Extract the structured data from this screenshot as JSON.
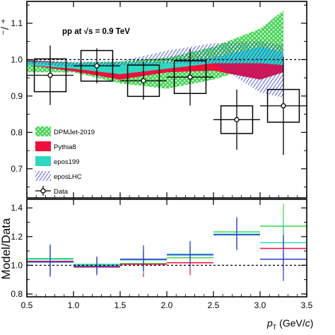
{
  "colors": {
    "dpmjet": "#3bd94a",
    "pythia8": "#f0103c",
    "epos199": "#2fd8c0",
    "eposlhc": "#2a3bd0",
    "data": "#000000",
    "frame": "#000000"
  },
  "labels": {
    "top_ylabel": "⁻/ ⁺",
    "annotation": "pp at √s = 0.9 TeV",
    "bottom_ylabel": "Model/Data",
    "xlabel": "p_T (GeV/c)"
  },
  "legend": [
    {
      "key": "dpmjet",
      "label": "DPMJet-2019",
      "style": "crosshatch"
    },
    {
      "key": "pythia8",
      "label": "Pythia8",
      "style": "solid"
    },
    {
      "key": "epos199",
      "label": "epos199",
      "style": "solid"
    },
    {
      "key": "eposlhc",
      "label": "eposLHC",
      "style": "hatch"
    },
    {
      "key": "data",
      "label": "Data",
      "style": "marker"
    }
  ],
  "chart_data": [
    {
      "type": "line",
      "panel": "ratio",
      "xlim": [
        0.5,
        3.5
      ],
      "ylim": [
        0.62,
        1.16
      ],
      "yticks": [
        0.7,
        0.8,
        0.9,
        1.0,
        1.1
      ],
      "reference_line": 1.0,
      "data_points": [
        {
          "x": 0.75,
          "y": 0.957,
          "xerr": 0.25,
          "stat": 0.082,
          "sys": 0.045
        },
        {
          "x": 1.25,
          "y": 0.983,
          "xerr": 0.25,
          "stat": 0.048,
          "sys": 0.042
        },
        {
          "x": 1.75,
          "y": 0.942,
          "xerr": 0.25,
          "stat": 0.052,
          "sys": 0.043
        },
        {
          "x": 2.25,
          "y": 0.952,
          "xerr": 0.25,
          "stat": 0.078,
          "sys": 0.045
        },
        {
          "x": 2.75,
          "y": 0.835,
          "xerr": 0.25,
          "stat": 0.083,
          "sys": 0.038
        },
        {
          "x": 3.25,
          "y": 0.873,
          "xerr": 0.25,
          "stat": 0.135,
          "sys": 0.045
        }
      ],
      "model_bands": [
        {
          "key": "dpmjet",
          "x": [
            0.5,
            1.0,
            1.5,
            2.0,
            2.5,
            3.0,
            3.25
          ],
          "low": [
            0.965,
            0.965,
            0.935,
            0.92,
            0.945,
            0.985,
            1.0
          ],
          "high": [
            1.0,
            0.992,
            0.995,
            1.005,
            1.035,
            1.085,
            1.135
          ]
        },
        {
          "key": "pythia8",
          "x": [
            0.5,
            1.0,
            1.5,
            2.0,
            2.5,
            3.0,
            3.25
          ],
          "low": [
            0.985,
            0.968,
            0.945,
            0.965,
            0.97,
            0.945,
            0.965
          ],
          "high": [
            0.998,
            0.99,
            0.985,
            0.99,
            1.005,
            1.025,
            1.0
          ]
        },
        {
          "key": "epos199",
          "x": [
            0.5,
            1.0,
            1.5,
            2.0,
            2.5,
            3.0,
            3.25
          ],
          "low": [
            0.985,
            0.975,
            0.96,
            0.975,
            0.99,
            0.99,
            0.985
          ],
          "high": [
            0.995,
            0.99,
            0.99,
            0.992,
            1.005,
            1.035,
            1.02
          ]
        },
        {
          "key": "eposlhc",
          "x": [
            0.5,
            1.0,
            1.5,
            2.0,
            2.5,
            3.0,
            3.25
          ],
          "low": [
            0.99,
            0.98,
            0.985,
            0.99,
            0.99,
            0.91,
            0.895
          ],
          "high": [
            1.0,
            0.995,
            0.995,
            1.025,
            1.045,
            1.05,
            1.04
          ]
        }
      ]
    },
    {
      "type": "line",
      "panel": "model_over_data",
      "xlim": [
        0.5,
        3.5
      ],
      "ylim": [
        0.78,
        1.46
      ],
      "yticks": [
        0.8,
        1.0,
        1.2,
        1.4
      ],
      "xticks": [
        0.5,
        1.0,
        1.5,
        2.0,
        2.5,
        3.0,
        3.5
      ],
      "reference_line": 1.0,
      "series": [
        {
          "key": "dpmjet",
          "points": [
            {
              "x": 0.75,
              "y": 1.04,
              "err": 0.11
            },
            {
              "x": 1.25,
              "y": 1.0,
              "err": 0.06
            },
            {
              "x": 1.75,
              "y": 1.01,
              "err": 0.09
            },
            {
              "x": 2.25,
              "y": 1.05,
              "err": 0.09
            },
            {
              "x": 2.75,
              "y": 1.23,
              "err": 0.11
            },
            {
              "x": 3.25,
              "y": 1.27,
              "err": 0.16
            }
          ]
        },
        {
          "key": "pythia8",
          "points": [
            {
              "x": 0.75,
              "y": 1.03,
              "err": 0.11
            },
            {
              "x": 1.25,
              "y": 0.99,
              "err": 0.06
            },
            {
              "x": 1.75,
              "y": 1.01,
              "err": 0.09
            },
            {
              "x": 2.25,
              "y": 1.02,
              "err": 0.09
            },
            {
              "x": 2.75,
              "y": 1.22,
              "err": 0.11
            },
            {
              "x": 3.25,
              "y": 1.12,
              "err": 0.16
            }
          ]
        },
        {
          "key": "epos199",
          "points": [
            {
              "x": 0.75,
              "y": 1.04,
              "err": 0.11
            },
            {
              "x": 1.25,
              "y": 1.0,
              "err": 0.06
            },
            {
              "x": 1.75,
              "y": 1.03,
              "err": 0.09
            },
            {
              "x": 2.25,
              "y": 1.07,
              "err": 0.09
            },
            {
              "x": 2.75,
              "y": 1.21,
              "err": 0.11
            },
            {
              "x": 3.25,
              "y": 1.15,
              "err": 0.16
            }
          ]
        },
        {
          "key": "eposlhc",
          "points": [
            {
              "x": 0.75,
              "y": 1.03,
              "err": 0.11
            },
            {
              "x": 1.25,
              "y": 1.0,
              "err": 0.06
            },
            {
              "x": 1.75,
              "y": 1.05,
              "err": 0.09
            },
            {
              "x": 2.25,
              "y": 1.08,
              "err": 0.09
            },
            {
              "x": 2.75,
              "y": 1.22,
              "err": 0.11
            },
            {
              "x": 3.25,
              "y": 1.05,
              "err": 0.16
            }
          ]
        }
      ]
    }
  ]
}
